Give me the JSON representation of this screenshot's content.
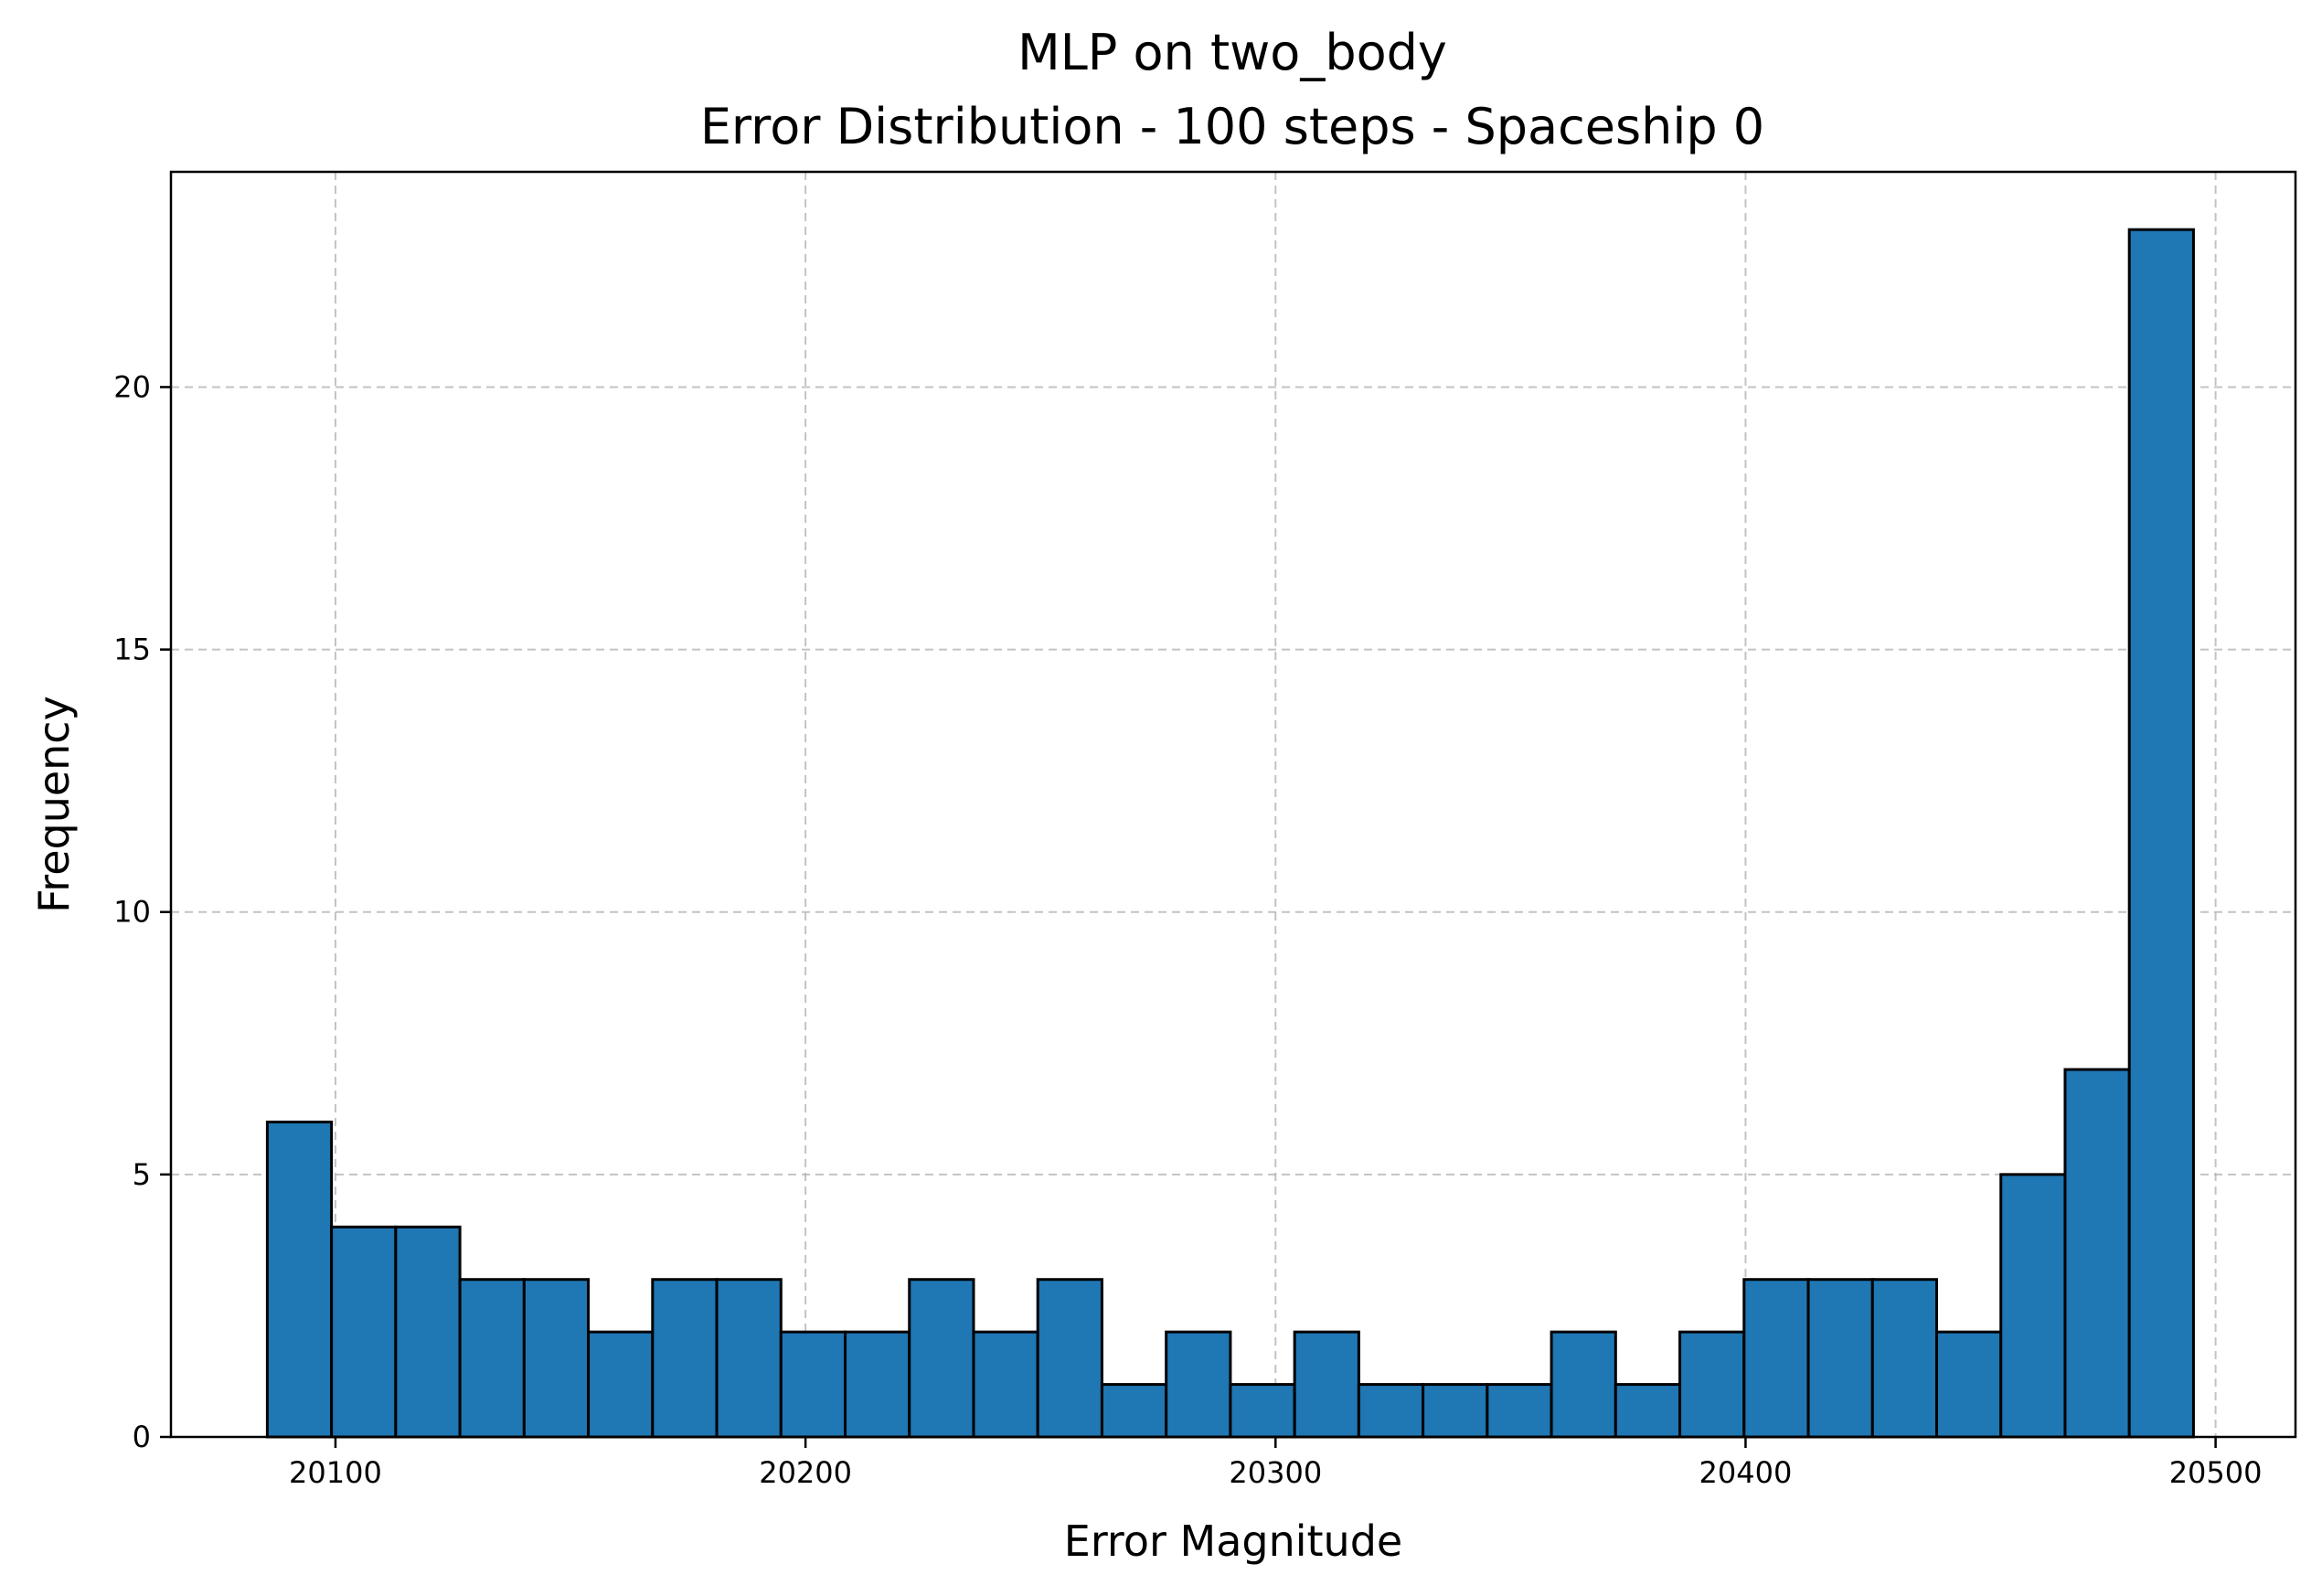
{
  "chart_data": {
    "type": "bar",
    "title": "MLP on two_body",
    "subtitle": "Error Distribution - 100 steps - Spaceship 0",
    "xlabel": "Error Magnitude",
    "ylabel": "Frequency",
    "xlim": [
      20065,
      20517
    ],
    "ylim": [
      0,
      24.1
    ],
    "xticks": [
      20100,
      20200,
      20300,
      20400,
      20500
    ],
    "yticks": [
      0,
      5,
      10,
      15,
      20
    ],
    "grid": true,
    "bar_color": "#1f77b4",
    "edge_color": "#000000",
    "bin_start": 20085.5,
    "bin_width": 13.66,
    "values": [
      6,
      4,
      4,
      3,
      3,
      2,
      3,
      3,
      2,
      2,
      3,
      2,
      3,
      1,
      2,
      1,
      2,
      1,
      1,
      1,
      2,
      1,
      2,
      3,
      3,
      3,
      2,
      5,
      7,
      23
    ]
  }
}
